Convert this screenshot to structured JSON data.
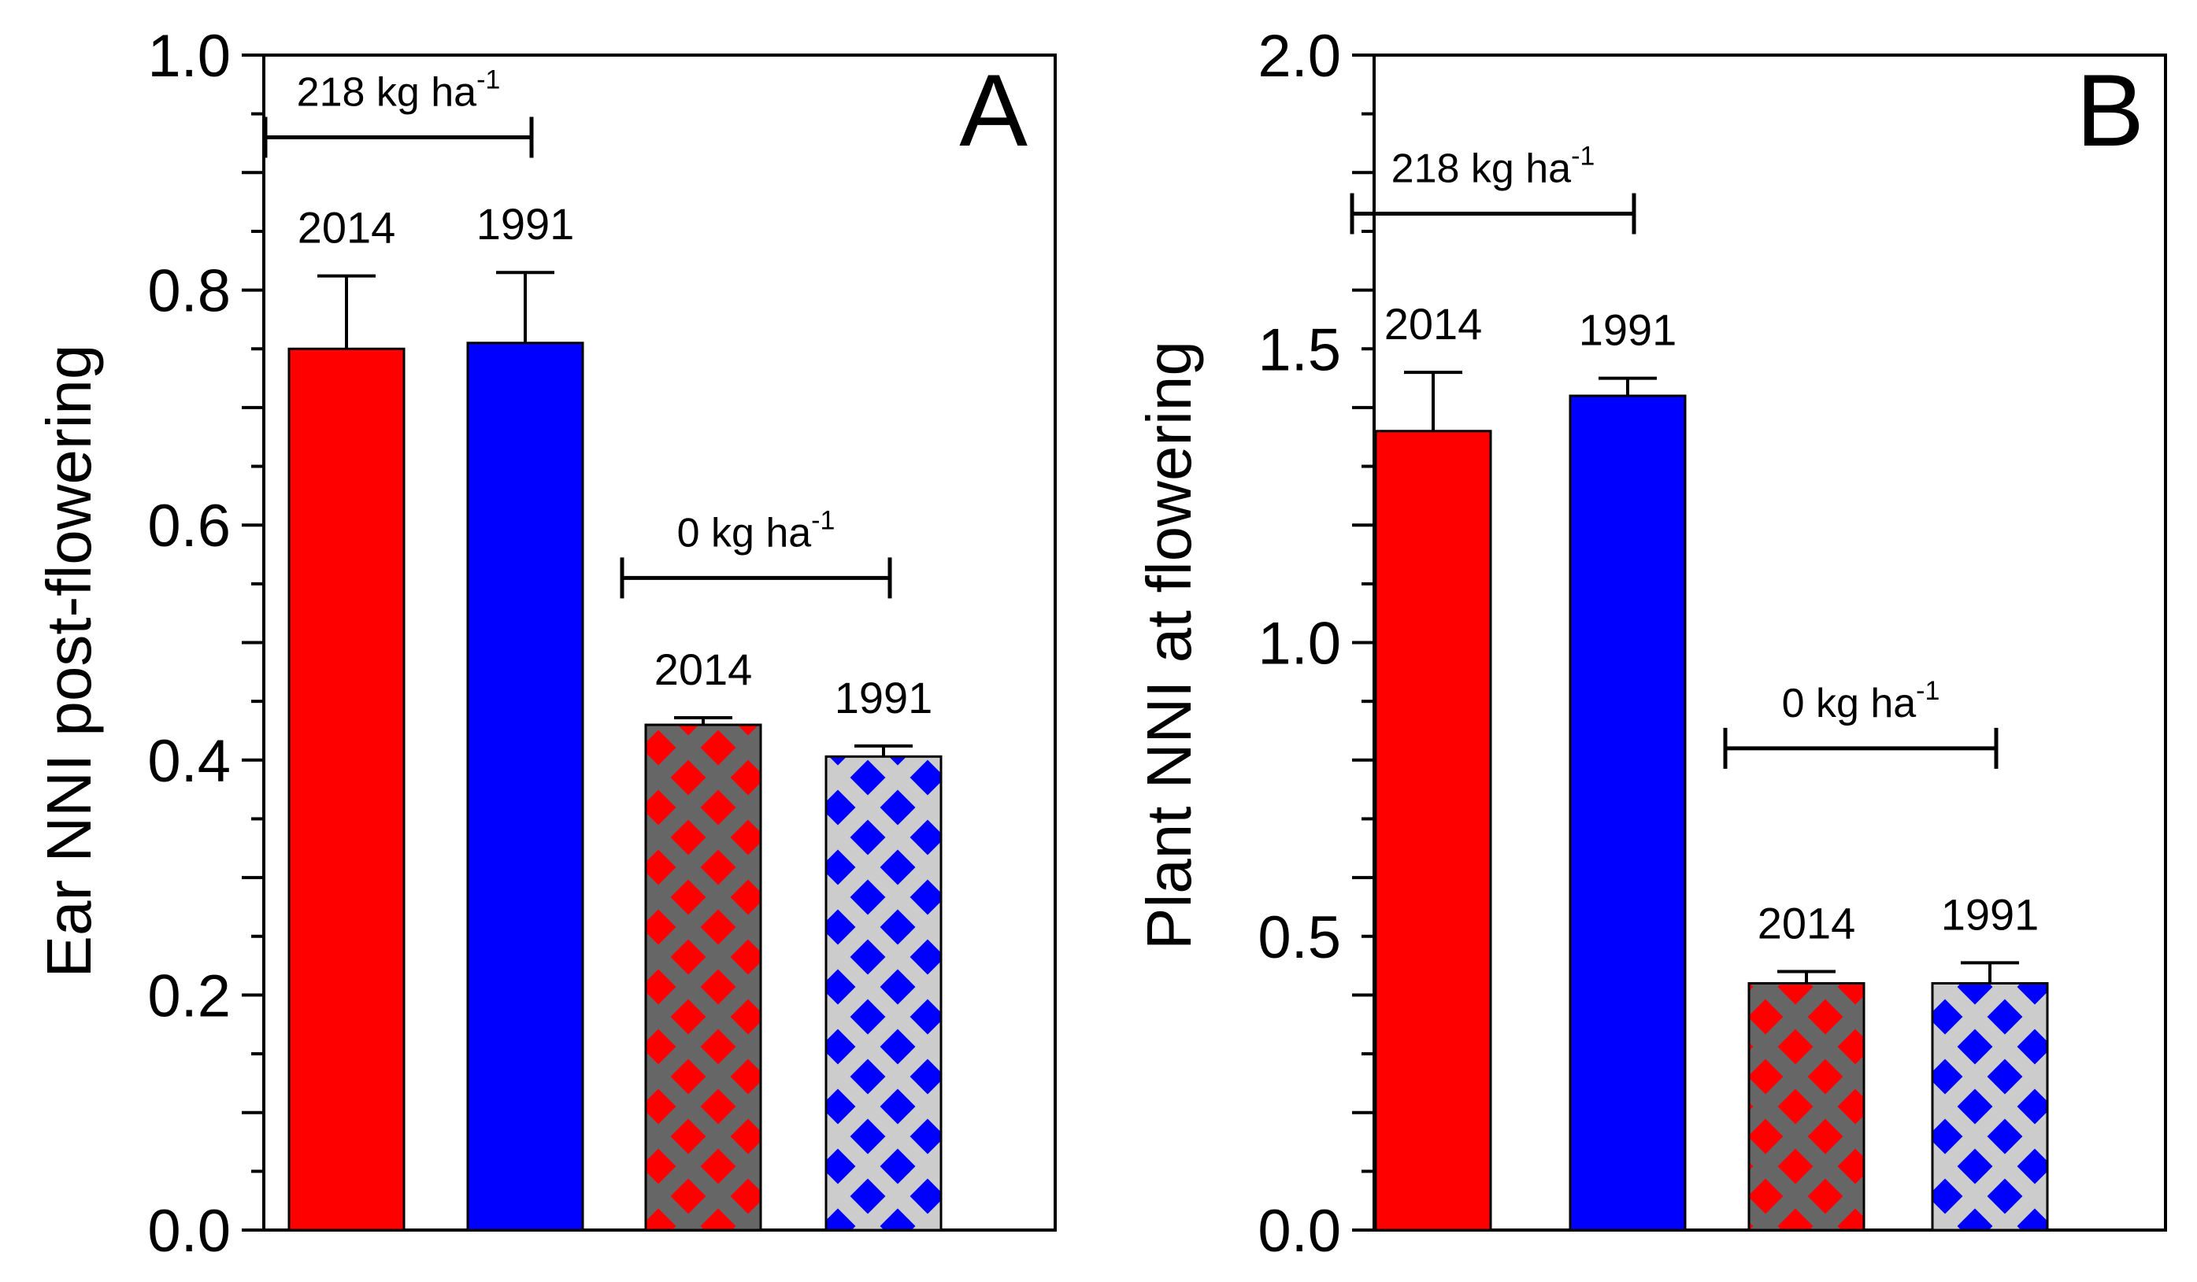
{
  "chart_data": [
    {
      "type": "bar",
      "panel": "A",
      "ylabel": "Ear NNI post-flowering",
      "ylim": [
        0,
        1.0
      ],
      "yticks": [
        "0.0",
        "0.2",
        "0.4",
        "0.6",
        "0.8",
        "1.0"
      ],
      "minor_tick_step": 0.05,
      "bars": [
        {
          "label": "2014",
          "group": "218",
          "value": 0.75,
          "error": 0.062,
          "color": "#ff0000",
          "hatch": null
        },
        {
          "label": "1991",
          "group": "218",
          "value": 0.755,
          "error": 0.06,
          "color": "#0000ff",
          "hatch": null
        },
        {
          "label": "2014",
          "group": "0",
          "value": 0.43,
          "error": 0.006,
          "color": "#ff0000",
          "hatch": "#666666"
        },
        {
          "label": "1991",
          "group": "0",
          "value": 0.403,
          "error": 0.009,
          "color": "#0000ff",
          "hatch": "#cccccc"
        }
      ],
      "brackets": [
        {
          "base": "218 kg ha",
          "sup": "-1",
          "from_bar": 0,
          "to_bar": 1,
          "y": 0.93
        },
        {
          "base": "0 kg ha",
          "sup": "-1",
          "from_bar": 2,
          "to_bar": 3,
          "y": 0.555
        }
      ]
    },
    {
      "type": "bar",
      "panel": "B",
      "ylabel": "Plant NNI at flowering",
      "ylim": [
        0,
        2.0
      ],
      "yticks": [
        "0.0",
        "0.5",
        "1.0",
        "1.5",
        "2.0"
      ],
      "minor_tick_step": 0.1,
      "bars": [
        {
          "label": "2014",
          "group": "218",
          "value": 1.36,
          "error": 0.1,
          "color": "#ff0000",
          "hatch": null
        },
        {
          "label": "1991",
          "group": "218",
          "value": 1.42,
          "error": 0.03,
          "color": "#0000ff",
          "hatch": null
        },
        {
          "label": "2014",
          "group": "0",
          "value": 0.42,
          "error": 0.02,
          "color": "#ff0000",
          "hatch": "#666666"
        },
        {
          "label": "1991",
          "group": "0",
          "value": 0.42,
          "error": 0.035,
          "color": "#0000ff",
          "hatch": "#cccccc"
        }
      ],
      "brackets": [
        {
          "base": "218 kg ha",
          "sup": "-1",
          "from_bar": 0,
          "to_bar": 1,
          "y": 1.73
        },
        {
          "base": "0 kg ha",
          "sup": "-1",
          "from_bar": 2,
          "to_bar": 3,
          "y": 0.82
        }
      ]
    }
  ]
}
